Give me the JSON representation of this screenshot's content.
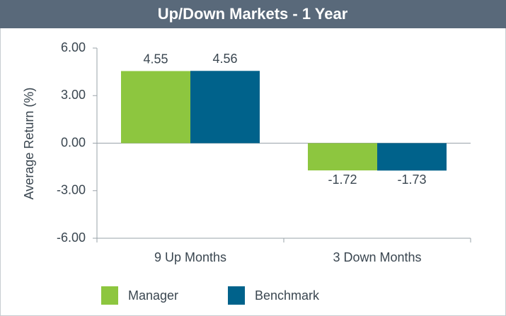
{
  "chart_data": {
    "type": "bar",
    "title": "Up/Down Markets - 1 Year",
    "y_label": "Average Return (%)",
    "categories": [
      "9 Up Months",
      "3 Down Months"
    ],
    "series": [
      {
        "name": "Manager",
        "color": "#8dc63f",
        "values": [
          4.55,
          -1.72
        ]
      },
      {
        "name": "Benchmark",
        "color": "#00628b",
        "values": [
          4.56,
          -1.73
        ]
      }
    ],
    "ylim": [
      -6,
      6
    ],
    "yticks": [
      {
        "value": -6,
        "label": "-6.00"
      },
      {
        "value": -3,
        "label": "-3.00"
      },
      {
        "value": 0,
        "label": "0.00"
      },
      {
        "value": 3,
        "label": "3.00"
      },
      {
        "value": 6,
        "label": "6.00"
      }
    ],
    "legend": "bottom"
  }
}
